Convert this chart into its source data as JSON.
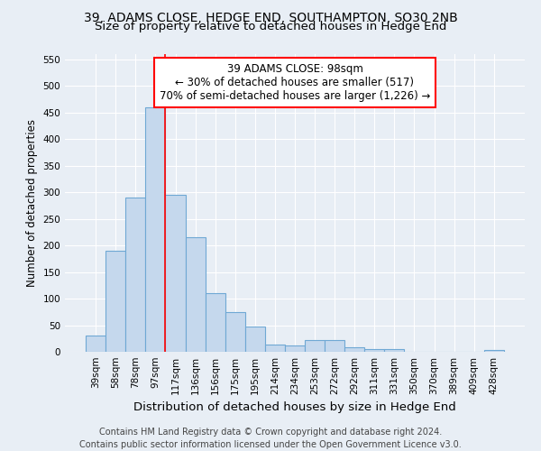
{
  "title": "39, ADAMS CLOSE, HEDGE END, SOUTHAMPTON, SO30 2NB",
  "subtitle": "Size of property relative to detached houses in Hedge End",
  "xlabel": "Distribution of detached houses by size in Hedge End",
  "ylabel": "Number of detached properties",
  "categories": [
    "39sqm",
    "58sqm",
    "78sqm",
    "97sqm",
    "117sqm",
    "136sqm",
    "156sqm",
    "175sqm",
    "195sqm",
    "214sqm",
    "234sqm",
    "253sqm",
    "272sqm",
    "292sqm",
    "311sqm",
    "331sqm",
    "350sqm",
    "370sqm",
    "389sqm",
    "409sqm",
    "428sqm"
  ],
  "values": [
    30,
    190,
    290,
    460,
    295,
    215,
    110,
    75,
    48,
    13,
    12,
    22,
    22,
    8,
    5,
    5,
    0,
    0,
    0,
    0,
    4
  ],
  "bar_color": "#c5d8ed",
  "bar_edge_color": "#6fa8d4",
  "property_line_x": 3.5,
  "annotation_line1": "39 ADAMS CLOSE: 98sqm",
  "annotation_line2": "← 30% of detached houses are smaller (517)",
  "annotation_line3": "70% of semi-detached houses are larger (1,226) →",
  "annotation_box_color": "white",
  "annotation_box_edge_color": "red",
  "property_line_color": "red",
  "ylim": [
    0,
    560
  ],
  "yticks": [
    0,
    50,
    100,
    150,
    200,
    250,
    300,
    350,
    400,
    450,
    500,
    550
  ],
  "background_color": "#e8eef5",
  "plot_bg_color": "#e8eef5",
  "grid_color": "#ffffff",
  "footer_text": "Contains HM Land Registry data © Crown copyright and database right 2024.\nContains public sector information licensed under the Open Government Licence v3.0.",
  "title_fontsize": 10,
  "subtitle_fontsize": 9.5,
  "xlabel_fontsize": 9.5,
  "ylabel_fontsize": 8.5,
  "tick_fontsize": 7.5,
  "annotation_fontsize": 8.5,
  "footer_fontsize": 7
}
